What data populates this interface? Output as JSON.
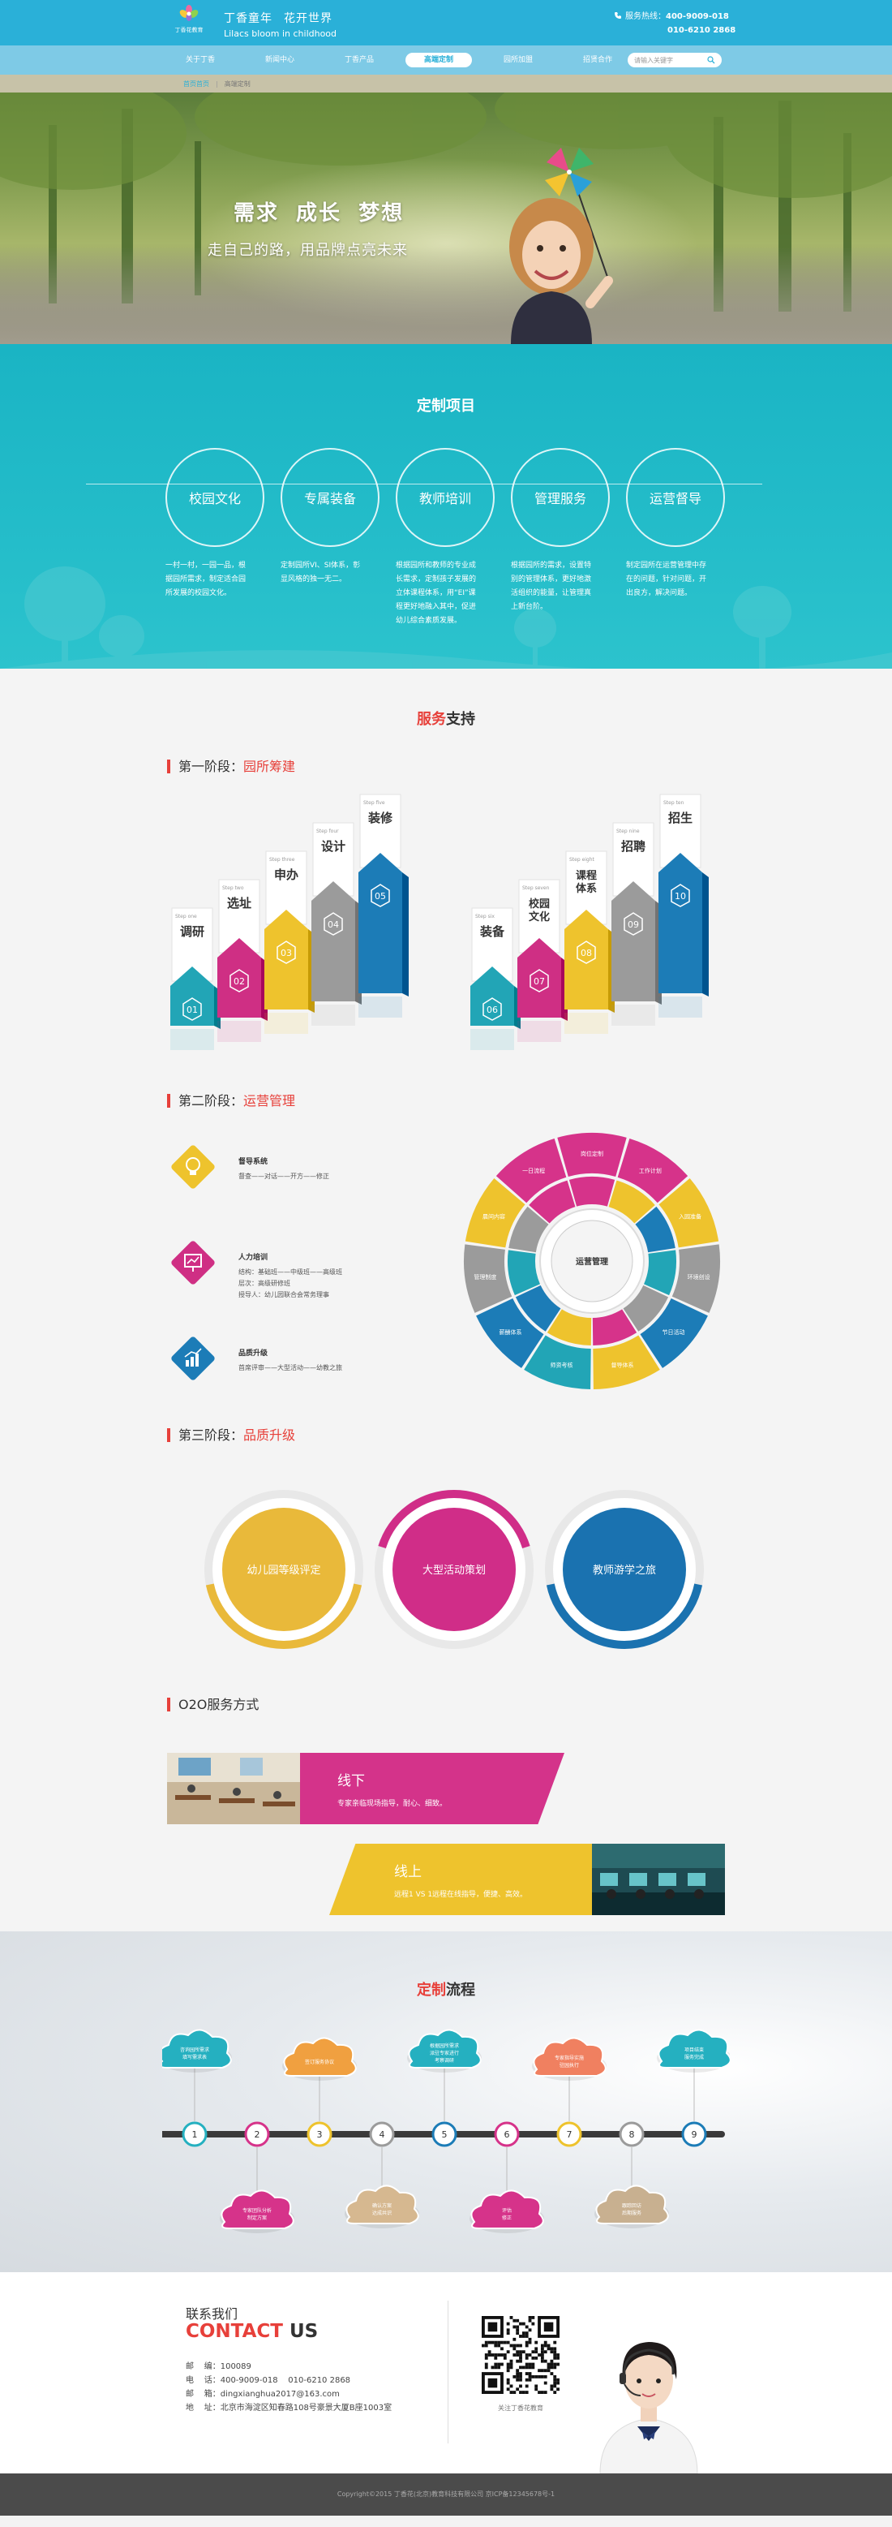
{
  "header": {
    "logo_text": "丁香花教育",
    "slogan_cn_1": "丁香童年",
    "slogan_cn_2": "花开世界",
    "slogan_en": "Lilacs bloom in childhood",
    "hotline_label": "服务热线：",
    "hotline_1": "400-9009-018",
    "hotline_2": "010-6210 2868"
  },
  "nav": {
    "items": [
      {
        "label": "关于丁香"
      },
      {
        "label": "新闻中心"
      },
      {
        "label": "丁香产品"
      },
      {
        "label": "高端定制",
        "active": true
      },
      {
        "label": "园所加盟"
      },
      {
        "label": "招贤合作"
      }
    ],
    "search_placeholder": "请输入关键字"
  },
  "breadcrumb": {
    "home": "首页首页",
    "current": "高端定制"
  },
  "banner": {
    "title": "需求 成长 梦想",
    "subtitle": "走自己的路，用品牌点亮未来"
  },
  "custom": {
    "title": "定制项目",
    "items": [
      {
        "label": "校园文化",
        "desc": "一村一村，一园一品，根据园所需求，制定适合园所发展的校园文化。"
      },
      {
        "label": "专属装备",
        "desc": "定制园所VI、SI体系，彰显风格的独一无二。"
      },
      {
        "label": "教师培训",
        "desc": "根据园所和教师的专业成长需求，定制孩子发展的立体课程体系，用“EI”课程更好地融入其中，促进幼儿综合素质发展。"
      },
      {
        "label": "管理服务",
        "desc": "根据园所的需求，设置特别的管理体系，更好地激活组织的能量，让管理真上新台阶。"
      },
      {
        "label": "运营督导",
        "desc": "制定园所在运营管理中存在的问题，针对问题，开出良方，解决问题。"
      }
    ]
  },
  "service": {
    "title_accent": "服务",
    "title_rest": "支持",
    "phase1": {
      "prefix": "第一阶段：",
      "accent": "园所筹建",
      "steps": [
        {
          "label": "调研",
          "no": "01",
          "color": "#22a5b6",
          "tag": "Step one"
        },
        {
          "label": "选址",
          "no": "02",
          "color": "#cf2f84",
          "tag": "Step two"
        },
        {
          "label": "申办",
          "no": "03",
          "color": "#eec32d",
          "tag": "Step three"
        },
        {
          "label": "设计",
          "no": "04",
          "color": "#9b9b9b",
          "tag": "Step four"
        },
        {
          "label": "装修",
          "no": "05",
          "color": "#1c7cb7",
          "tag": "Step five"
        },
        {
          "label": "装备",
          "no": "06",
          "color": "#22a5b6",
          "tag": "Step six"
        },
        {
          "label": "校园文化",
          "no": "07",
          "color": "#cf2f84",
          "tag": "Step seven"
        },
        {
          "label": "课程体系",
          "no": "08",
          "color": "#eec32d",
          "tag": "Step eight"
        },
        {
          "label": "招聘",
          "no": "09",
          "color": "#9b9b9b",
          "tag": "Step nine"
        },
        {
          "label": "招生",
          "no": "10",
          "color": "#1c7cb7",
          "tag": "Step ten"
        }
      ]
    },
    "phase2": {
      "prefix": "第二阶段：",
      "accent": "运营管理",
      "items": [
        {
          "title": "督导系统",
          "desc": "督查——对话——开方——修正",
          "color": "#eec32d",
          "icon": "lightbulb-icon"
        },
        {
          "title": "人力培训",
          "desc": "结构：基础班——中级班——高级班\n层次：高级研修班\n授导人：幼儿园联合会常务理事",
          "color": "#cf2f84",
          "icon": "presentation-icon"
        },
        {
          "title": "品质升级",
          "desc": "首席评审——大型活动——幼教之旅",
          "color": "#1c7cb7",
          "icon": "growth-chart-icon"
        }
      ],
      "wheel_center": "运营管理",
      "wheel_outer": [
        {
          "label": "岗位定制",
          "color": "#d6338a"
        },
        {
          "label": "工作计划",
          "color": "#d6338a"
        },
        {
          "label": "入园准备",
          "color": "#eec32d"
        },
        {
          "label": "环境创设",
          "color": "#9b9b9b"
        },
        {
          "label": "节日活动",
          "color": "#1c7cb7"
        },
        {
          "label": "督导体系",
          "color": "#eec32d"
        },
        {
          "label": "师资考核",
          "color": "#22a5b6"
        },
        {
          "label": "薪酬体系",
          "color": "#1c7cb7"
        },
        {
          "label": "管理制度",
          "color": "#9b9b9b"
        },
        {
          "label": "晨间内容",
          "color": "#eec32d"
        },
        {
          "label": "一日流程",
          "color": "#d6338a"
        }
      ]
    },
    "phase3": {
      "prefix": "第三阶段：",
      "accent": "品质升级",
      "rings": [
        {
          "label": "幼儿园等级评定",
          "color": "#e9b93a"
        },
        {
          "label": "大型活动策划",
          "color": "#d02d88"
        },
        {
          "label": "教师游学之旅",
          "color": "#1a72b0"
        }
      ]
    },
    "o2o": {
      "title": "O2O服务方式",
      "offline": {
        "title": "线下",
        "desc": "专家亲临现场指导，耐心、细致。"
      },
      "online": {
        "title": "线上",
        "desc": "远程1 VS 1远程在线指导，便捷、高效。"
      }
    }
  },
  "process": {
    "title_accent": "定制",
    "title_rest": "流程",
    "steps": [
      "1",
      "2",
      "3",
      "4",
      "5",
      "6",
      "7",
      "8",
      "9"
    ],
    "clouds_top": [
      {
        "text": "咨询园所需求\n填写需求表",
        "color": "#25b0c0"
      },
      {
        "text": "签订服务协议",
        "color": "#f0a040"
      },
      {
        "text": "根据园所需求\n派驻专家进行\n考察调研",
        "color": "#25b0c0"
      },
      {
        "text": "专家指导实施\n驻园执行",
        "color": "#f08060"
      },
      {
        "text": "项目结束\n服务完成",
        "color": "#25b0c0"
      }
    ],
    "clouds_bottom": [
      {
        "text": "专家团队分析\n制定方案",
        "color": "#d6338a"
      },
      {
        "text": "确认方案\n达成共识",
        "color": "#d6b890"
      },
      {
        "text": "评估\n修正",
        "color": "#d6338a"
      },
      {
        "text": "跟踪回访\n后期服务",
        "color": "#c8b090"
      }
    ],
    "circle_colors": [
      "#25b0c0",
      "#d6338a",
      "#eec32d",
      "#9b9b9b",
      "#1c7cb7",
      "#d6338a",
      "#eec32d",
      "#9b9b9b",
      "#1c7cb7"
    ]
  },
  "contact": {
    "title_cn": "联系我们",
    "title_en_accent": "CONTACT",
    "title_en_rest": "US",
    "lines": [
      "邮    编：100089",
      "电    话：400-9009-018    010-6210 2868",
      "邮    箱：dingxianghua2017@163.com",
      "地    址：北京市海淀区知春路108号豪景大厦B座1003室"
    ],
    "qr_caption": "关注丁香花教育"
  },
  "footer": {
    "text": "Copyright©2015  丁香花(北京)教育科技有限公司  京ICP备12345678号-1"
  },
  "colors": {
    "primary": "#2ab0d8",
    "accent": "#e7403a",
    "teal": "#23bcc9",
    "magenta": "#cf2f84",
    "yellow": "#eec32d",
    "blue": "#1c7cb7",
    "grey": "#9b9b9b"
  }
}
